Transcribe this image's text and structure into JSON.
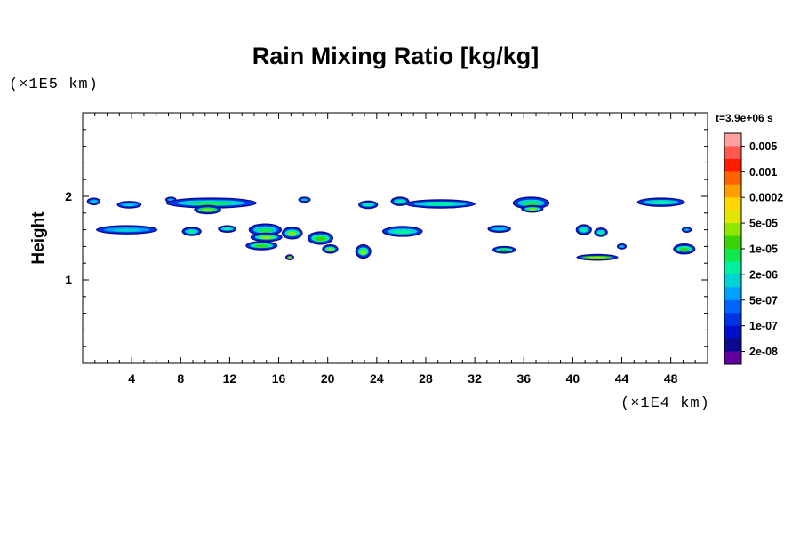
{
  "chart_data": {
    "type": "heatmap",
    "title": "Rain Mixing Ratio [kg/kg]",
    "xlabel": "",
    "ylabel": "Height",
    "x_unit": "(×1E4 km)",
    "y_unit": "(×1E5 km)",
    "time_label": "t=3.9e+06 s",
    "xlim": [
      0,
      51
    ],
    "ylim": [
      0,
      3
    ],
    "x_ticks": [
      4,
      8,
      12,
      16,
      20,
      24,
      28,
      32,
      36,
      40,
      44,
      48
    ],
    "y_ticks": [
      1,
      2
    ],
    "colorbar": {
      "labels": [
        "0.005",
        "0.001",
        "0.0002",
        "5e-05",
        "1e-05",
        "2e-06",
        "5e-07",
        "1e-07",
        "2e-08"
      ],
      "colors": [
        "#ffa0a0",
        "#ff5a50",
        "#ff1a00",
        "#ff6400",
        "#ff9e00",
        "#ffd600",
        "#e0e600",
        "#90e600",
        "#3cd20a",
        "#14e650",
        "#00f0a0",
        "#00d2d2",
        "#00a0ff",
        "#0064ff",
        "#0032e6",
        "#0010c8",
        "#0a0a8c",
        "#6400a0"
      ]
    },
    "cells": [
      {
        "x": 0.9,
        "y": 1.94,
        "w": 0.9,
        "h": 0.06,
        "level": 0.18
      },
      {
        "x": 3.8,
        "y": 1.9,
        "w": 1.8,
        "h": 0.06,
        "level": 0.2
      },
      {
        "x": 7.2,
        "y": 1.96,
        "w": 0.7,
        "h": 0.04,
        "level": 0.15
      },
      {
        "x": 10.5,
        "y": 1.92,
        "w": 7.2,
        "h": 0.1,
        "level": 0.35
      },
      {
        "x": 10.2,
        "y": 1.84,
        "w": 2.0,
        "h": 0.08,
        "level": 0.6
      },
      {
        "x": 18.1,
        "y": 1.96,
        "w": 0.8,
        "h": 0.04,
        "level": 0.15
      },
      {
        "x": 23.3,
        "y": 1.9,
        "w": 1.4,
        "h": 0.07,
        "level": 0.25
      },
      {
        "x": 25.9,
        "y": 1.94,
        "w": 1.3,
        "h": 0.08,
        "level": 0.3
      },
      {
        "x": 29.2,
        "y": 1.91,
        "w": 5.5,
        "h": 0.08,
        "level": 0.3
      },
      {
        "x": 36.6,
        "y": 1.92,
        "w": 2.8,
        "h": 0.12,
        "level": 0.35
      },
      {
        "x": 36.7,
        "y": 1.85,
        "w": 1.6,
        "h": 0.06,
        "level": 0.55
      },
      {
        "x": 47.2,
        "y": 1.93,
        "w": 3.7,
        "h": 0.08,
        "level": 0.3
      },
      {
        "x": 3.6,
        "y": 1.6,
        "w": 4.8,
        "h": 0.08,
        "level": 0.2
      },
      {
        "x": 8.9,
        "y": 1.58,
        "w": 1.4,
        "h": 0.08,
        "level": 0.3
      },
      {
        "x": 11.8,
        "y": 1.61,
        "w": 1.3,
        "h": 0.06,
        "level": 0.25
      },
      {
        "x": 14.9,
        "y": 1.6,
        "w": 2.5,
        "h": 0.12,
        "level": 0.35
      },
      {
        "x": 15.0,
        "y": 1.51,
        "w": 2.4,
        "h": 0.08,
        "level": 0.55
      },
      {
        "x": 17.1,
        "y": 1.56,
        "w": 1.5,
        "h": 0.12,
        "level": 0.55
      },
      {
        "x": 14.6,
        "y": 1.41,
        "w": 2.4,
        "h": 0.08,
        "level": 0.45
      },
      {
        "x": 19.4,
        "y": 1.5,
        "w": 1.9,
        "h": 0.13,
        "level": 0.45
      },
      {
        "x": 20.2,
        "y": 1.37,
        "w": 1.1,
        "h": 0.08,
        "level": 0.55
      },
      {
        "x": 22.9,
        "y": 1.34,
        "w": 1.1,
        "h": 0.14,
        "level": 0.55
      },
      {
        "x": 26.1,
        "y": 1.58,
        "w": 3.1,
        "h": 0.1,
        "level": 0.3
      },
      {
        "x": 34.0,
        "y": 1.61,
        "w": 1.7,
        "h": 0.06,
        "level": 0.2
      },
      {
        "x": 34.4,
        "y": 1.36,
        "w": 1.7,
        "h": 0.06,
        "level": 0.5
      },
      {
        "x": 40.9,
        "y": 1.6,
        "w": 1.1,
        "h": 0.1,
        "level": 0.3
      },
      {
        "x": 42.3,
        "y": 1.57,
        "w": 0.9,
        "h": 0.08,
        "level": 0.25
      },
      {
        "x": 42.0,
        "y": 1.27,
        "w": 3.2,
        "h": 0.05,
        "level": 0.8
      },
      {
        "x": 44.0,
        "y": 1.4,
        "w": 0.6,
        "h": 0.04,
        "level": 0.2
      },
      {
        "x": 49.1,
        "y": 1.37,
        "w": 1.6,
        "h": 0.1,
        "level": 0.5
      },
      {
        "x": 49.3,
        "y": 1.6,
        "w": 0.6,
        "h": 0.04,
        "level": 0.15
      },
      {
        "x": 16.9,
        "y": 1.27,
        "w": 0.5,
        "h": 0.04,
        "level": 0.8
      }
    ]
  }
}
